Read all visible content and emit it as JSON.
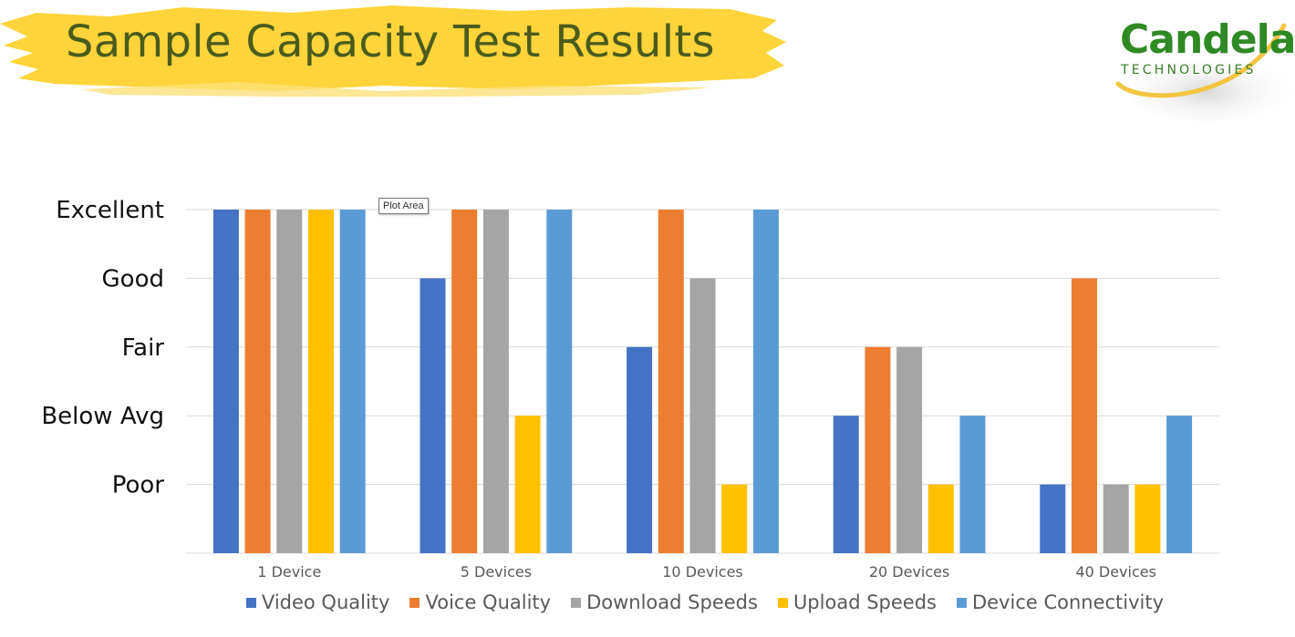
{
  "slide": {
    "title": "Sample Capacity Test Results"
  },
  "logo": {
    "name": "Candela",
    "sub": "TECHNOLOGIES"
  },
  "tooltip": "Plot Area",
  "chart_data": {
    "type": "bar",
    "title": "",
    "xlabel": "",
    "ylabel": "",
    "categories": [
      "1 Device",
      "5 Devices",
      "10 Devices",
      "20 Devices",
      "40 Devices"
    ],
    "y_tick_labels": [
      "Poor",
      "Below Avg",
      "Fair",
      "Good",
      "Excellent"
    ],
    "ylim": [
      0,
      5
    ],
    "grid": true,
    "legend_position": "bottom",
    "series": [
      {
        "name": "Video Quality",
        "color": "#4472c4",
        "values": [
          5,
          4,
          3,
          2,
          1
        ]
      },
      {
        "name": "Voice Quality",
        "color": "#ed7d31",
        "values": [
          5,
          5,
          5,
          3,
          4
        ]
      },
      {
        "name": "Download Speeds",
        "color": "#a5a5a5",
        "values": [
          5,
          5,
          4,
          3,
          1
        ]
      },
      {
        "name": "Upload Speeds",
        "color": "#ffc000",
        "values": [
          5,
          2,
          1,
          1,
          1
        ]
      },
      {
        "name": "Device Connectivity",
        "color": "#5b9bd5",
        "values": [
          5,
          5,
          5,
          2,
          2
        ]
      }
    ]
  }
}
